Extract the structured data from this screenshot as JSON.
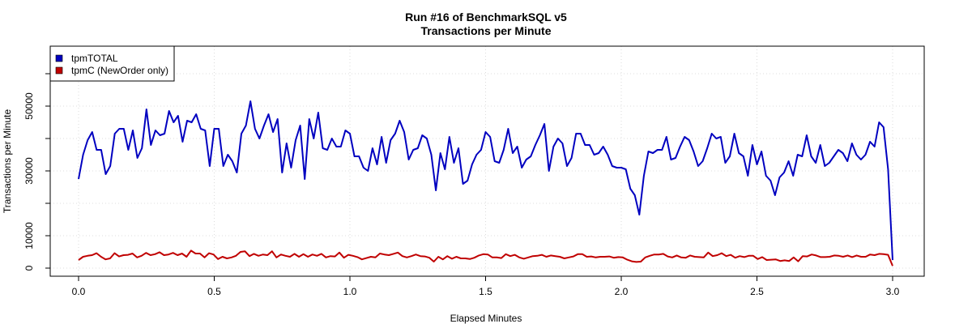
{
  "chart_data": {
    "type": "line",
    "title": "Run #16 of BenchmarkSQL v5",
    "subtitle": "Transactions per Minute",
    "xlabel": "Elapsed Minutes",
    "ylabel": "Transactions per Minute",
    "xlim": [
      0,
      3.0
    ],
    "ylim": [
      0,
      60000
    ],
    "x_ticks": [
      0.0,
      0.5,
      1.0,
      1.5,
      2.0,
      2.5,
      3.0
    ],
    "x_tick_labels": [
      "0.0",
      "0.5",
      "1.0",
      "1.5",
      "2.0",
      "2.5",
      "3.0"
    ],
    "y_ticks": [
      0,
      10000,
      30000,
      50000
    ],
    "y_tick_labels": [
      "0",
      "10000",
      "30000",
      "50000"
    ],
    "grid": true,
    "legend_position": "top-left",
    "series": [
      {
        "name": "tpmTOTAL",
        "color": "#0000c0",
        "values": [
          27500,
          35000,
          39500,
          42000,
          36500,
          36500,
          29000,
          31500,
          41500,
          43000,
          43000,
          36500,
          42500,
          34000,
          37000,
          49000,
          38000,
          42500,
          41000,
          41500,
          48500,
          45000,
          47000,
          39000,
          45500,
          45000,
          47500,
          43000,
          42500,
          31500,
          43000,
          43000,
          31500,
          35000,
          33000,
          29500,
          41500,
          44000,
          51500,
          43000,
          40000,
          44000,
          47500,
          42000,
          46000,
          29500,
          38500,
          31000,
          39500,
          44000,
          27500,
          46000,
          40000,
          48000,
          37000,
          36500,
          40000,
          37500,
          37500,
          42500,
          41500,
          34500,
          34500,
          31000,
          30000,
          37000,
          32000,
          40500,
          32500,
          39500,
          41500,
          45500,
          42000,
          33500,
          36500,
          37000,
          41000,
          40000,
          35000,
          24000,
          35500,
          30500,
          40500,
          32500,
          37000,
          26000,
          27000,
          32000,
          35000,
          36500,
          42000,
          40500,
          33000,
          32500,
          36500,
          43000,
          35500,
          37500,
          31000,
          33500,
          34500,
          38000,
          41000,
          44500,
          30000,
          37500,
          40000,
          38500,
          31500,
          34000,
          41500,
          41500,
          38000,
          38000,
          35000,
          35500,
          37500,
          35000,
          31500,
          31000,
          31000,
          30500,
          24500,
          22500,
          16500,
          28500,
          36000,
          35500,
          36500,
          36500,
          40500,
          33500,
          34000,
          37500,
          40500,
          39500,
          36000,
          31500,
          33000,
          37000,
          41500,
          40000,
          40500,
          32500,
          34500,
          41500,
          35500,
          34500,
          28500,
          38000,
          32000,
          36000,
          28500,
          27000,
          22500,
          28000,
          29500,
          33000,
          28500,
          35000,
          34500,
          41000,
          34500,
          32500,
          38000,
          31500,
          32500,
          34500,
          36500,
          35500,
          33000,
          38500,
          35000,
          33500,
          35000,
          39000,
          37500,
          45000,
          43500,
          30500,
          2500
        ]
      },
      {
        "name": "tpmC (NewOrder only)",
        "color": "#c00000",
        "values": [
          2500,
          3500,
          3800,
          4000,
          4600,
          3500,
          2700,
          3000,
          4600,
          3600,
          4000,
          4100,
          4500,
          3300,
          3800,
          4700,
          4000,
          4300,
          4900,
          4000,
          4200,
          4700,
          4000,
          4500,
          3500,
          5400,
          4500,
          4500,
          3300,
          4600,
          4200,
          2800,
          3500,
          3000,
          3300,
          3800,
          5000,
          5200,
          3700,
          4400,
          3800,
          4200,
          4000,
          5200,
          3300,
          4200,
          3800,
          3500,
          4400,
          3500,
          4300,
          3500,
          4200,
          3800,
          4400,
          3300,
          3700,
          3600,
          4800,
          3200,
          4100,
          3800,
          3400,
          2700,
          3100,
          3500,
          3300,
          4500,
          4200,
          4000,
          4400,
          4800,
          3700,
          3300,
          3700,
          4200,
          3700,
          3600,
          3200,
          2000,
          3500,
          2700,
          3700,
          2900,
          3500,
          3000,
          3000,
          2800,
          3200,
          3900,
          4300,
          4200,
          3300,
          3300,
          3100,
          4300,
          3700,
          4100,
          3300,
          2900,
          3300,
          3700,
          3800,
          4100,
          3500,
          3900,
          3700,
          3500,
          3000,
          3300,
          3600,
          4300,
          4300,
          3500,
          3600,
          3300,
          3500,
          3500,
          3600,
          3200,
          3400,
          3300,
          2600,
          2100,
          1900,
          2000,
          3300,
          3800,
          4200,
          4200,
          4400,
          3600,
          3300,
          3900,
          3300,
          3200,
          3900,
          3500,
          3400,
          3300,
          4800,
          3700,
          4000,
          4600,
          3700,
          4100,
          3200,
          3700,
          3400,
          3800,
          3800,
          2800,
          3400,
          2500,
          2600,
          2700,
          2200,
          2400,
          2200,
          3300,
          2100,
          3700,
          3600,
          4200,
          3900,
          3400,
          3400,
          3500,
          3900,
          3800,
          3500,
          3900,
          3400,
          3900,
          3500,
          3500,
          4200,
          4000,
          4400,
          4300,
          4100,
          700
        ]
      }
    ]
  }
}
